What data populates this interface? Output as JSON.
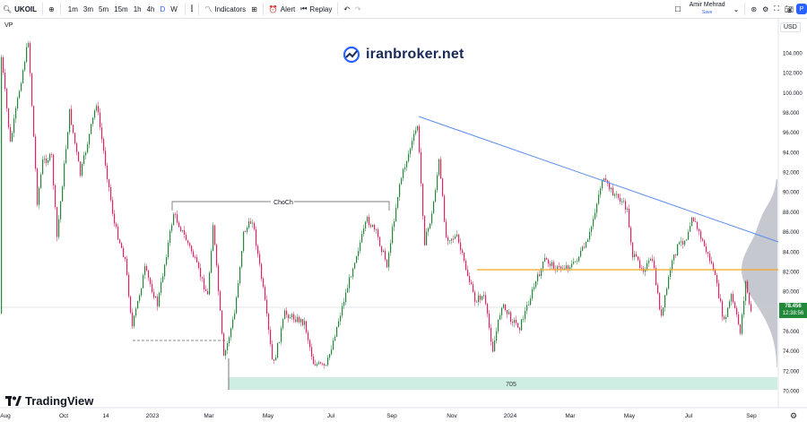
{
  "toolbar": {
    "symbol": "UKOIL",
    "timeframes": [
      "1m",
      "3m",
      "5m",
      "15m",
      "1h",
      "4h",
      "D",
      "W"
    ],
    "active_timeframe": "D",
    "indicators_label": "Indicators",
    "alert_label": "Alert",
    "replay_label": "Replay",
    "user_name": "Amir Mehrad",
    "save_label": "Save",
    "profile_initial": "P"
  },
  "chart": {
    "vp_label": "VP",
    "currency": "USD",
    "watermark": "iranbroker.net",
    "brand": "TradingView",
    "price_axis": [
      "104.000",
      "102.000",
      "100.000",
      "98.000",
      "96.000",
      "94.000",
      "92.000",
      "90.000",
      "88.000",
      "86.000",
      "84.000",
      "82.000",
      "80.000",
      "78.000",
      "76.000",
      "74.000",
      "72.000",
      "70.000"
    ],
    "time_axis": [
      "Aug",
      "Oct",
      "14",
      "2023",
      "Mar",
      "May",
      "Jul",
      "Sep",
      "Nov",
      "2024",
      "Mar",
      "May",
      "Jul",
      "Sep"
    ],
    "last_price": "78.456",
    "countdown": "12:38:56",
    "choch_label": "ChoCh",
    "zone_label": "705",
    "colors": {
      "up": "#22893b",
      "down": "#e91e63",
      "trend": "#5b8def",
      "level": "#f5a623",
      "zone": "#cfeee3"
    }
  }
}
